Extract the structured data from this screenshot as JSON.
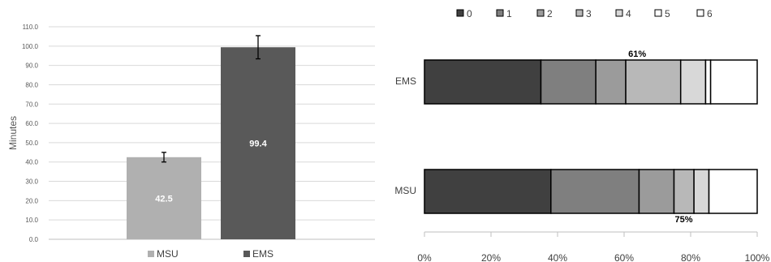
{
  "chart_data": [
    {
      "type": "bar",
      "categories": [
        "MSU",
        "EMS"
      ],
      "values": [
        42.5,
        99.4
      ],
      "error": [
        2.5,
        6.0
      ],
      "data_labels": [
        "42.5",
        "99.4"
      ],
      "colors": [
        "#b0b0b0",
        "#595959"
      ],
      "ylabel": "Minutes",
      "ylim": [
        0,
        110
      ],
      "yticks": [
        "0.0",
        "10.0",
        "20.0",
        "30.0",
        "40.0",
        "50.0",
        "60.0",
        "70.0",
        "80.0",
        "90.0",
        "100.0",
        "110.0"
      ],
      "grid": true,
      "legend": [
        "MSU",
        "EMS"
      ],
      "legend_position": "bottom"
    },
    {
      "type": "bar",
      "orientation": "horizontal",
      "stacked": "percent",
      "categories": [
        "EMS",
        "MSU"
      ],
      "legend": [
        "0",
        "1",
        "2",
        "3",
        "4",
        "5",
        "6"
      ],
      "legend_position": "top",
      "colors": [
        "#404040",
        "#7f7f7f",
        "#9b9b9b",
        "#b8b8b8",
        "#d8d8d8",
        "#ffffff",
        "#ffffff"
      ],
      "series": [
        {
          "name": "0",
          "values": [
            35,
            38
          ]
        },
        {
          "name": "1",
          "values": [
            16.5,
            26.5
          ]
        },
        {
          "name": "2",
          "values": [
            9,
            10.5
          ]
        },
        {
          "name": "3",
          "values": [
            16.5,
            6
          ]
        },
        {
          "name": "4",
          "values": [
            7.5,
            4.5
          ]
        },
        {
          "name": "5",
          "values": [
            1.5,
            0
          ]
        },
        {
          "name": "6",
          "values": [
            14,
            14.5
          ]
        }
      ],
      "annotations": [
        {
          "category": "EMS",
          "text": "61%",
          "at": 61,
          "side": "above"
        },
        {
          "category": "MSU",
          "text": "75%",
          "at": 75,
          "side": "below"
        }
      ],
      "xticks": [
        "0%",
        "20%",
        "40%",
        "60%",
        "80%",
        "100%"
      ],
      "xlim": [
        0,
        100
      ]
    }
  ]
}
